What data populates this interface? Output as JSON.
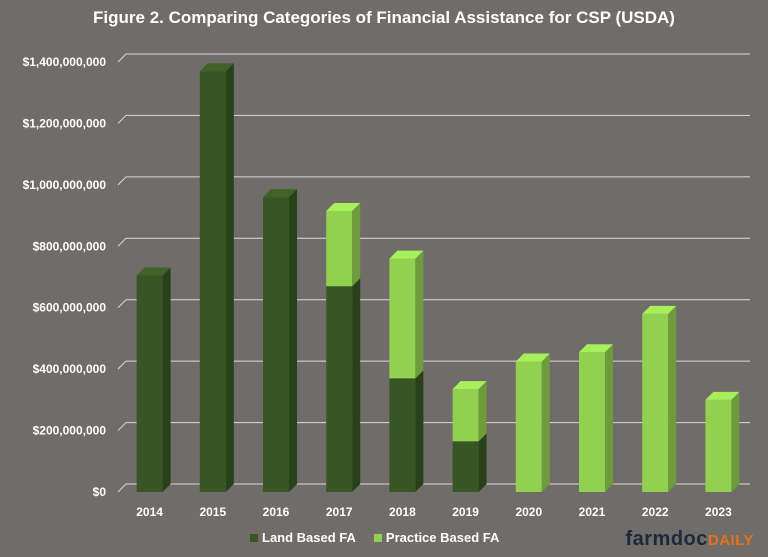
{
  "chart_data": {
    "type": "bar",
    "stacked": true,
    "title": "Figure 2. Comparing Categories of Financial Assistance for CSP (USDA)",
    "categories": [
      "2014",
      "2015",
      "2016",
      "2017",
      "2018",
      "2019",
      "2020",
      "2021",
      "2022",
      "2023"
    ],
    "series": [
      {
        "name": "Land Based FA",
        "color": "#375623",
        "values": [
          705000000,
          1370000000,
          960000000,
          670000000,
          370000000,
          165000000,
          0,
          0,
          0,
          0
        ]
      },
      {
        "name": "Practice Based FA",
        "color": "#92d050",
        "values": [
          0,
          0,
          0,
          245000000,
          390000000,
          170000000,
          425000000,
          455000000,
          580000000,
          300000000
        ]
      }
    ],
    "ylim": [
      0,
      1400000000
    ],
    "yticks": [
      "$0",
      "$200,000,000",
      "$400,000,000",
      "$600,000,000",
      "$800,000,000",
      "$1,000,000,000",
      "$1,200,000,000",
      "$1,400,000,000"
    ],
    "grid": true,
    "legend": "bottom"
  },
  "brand": {
    "part1": "farmdoc",
    "part2": "DAILY"
  }
}
